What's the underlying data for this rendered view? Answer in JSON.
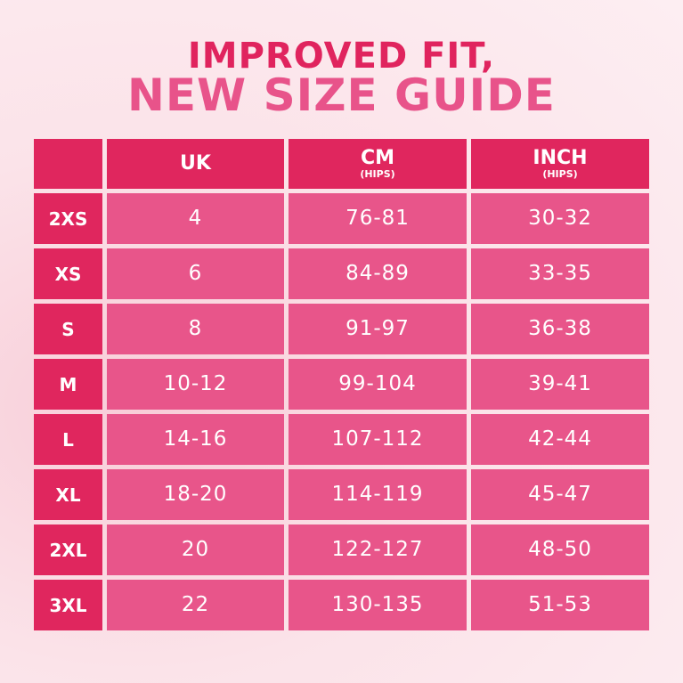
{
  "title": {
    "line1": "IMPROVED FIT,",
    "line2": "NEW SIZE GUIDE"
  },
  "colors": {
    "header": "#e0265e",
    "cell": "#e8558a",
    "title_line1": "#e0245e",
    "title_line2": "#e8538a"
  },
  "table": {
    "headers": [
      {
        "label": "UK",
        "sub": ""
      },
      {
        "label": "CM",
        "sub": "(HIPS)"
      },
      {
        "label": "INCH",
        "sub": "(HIPS)"
      }
    ],
    "rows": [
      {
        "size": "2XS",
        "uk": "4",
        "cm": "76-81",
        "inch": "30-32"
      },
      {
        "size": "XS",
        "uk": "6",
        "cm": "84-89",
        "inch": "33-35"
      },
      {
        "size": "S",
        "uk": "8",
        "cm": "91-97",
        "inch": "36-38"
      },
      {
        "size": "M",
        "uk": "10-12",
        "cm": "99-104",
        "inch": "39-41"
      },
      {
        "size": "L",
        "uk": "14-16",
        "cm": "107-112",
        "inch": "42-44"
      },
      {
        "size": "XL",
        "uk": "18-20",
        "cm": "114-119",
        "inch": "45-47"
      },
      {
        "size": "2XL",
        "uk": "20",
        "cm": "122-127",
        "inch": "48-50"
      },
      {
        "size": "3XL",
        "uk": "22",
        "cm": "130-135",
        "inch": "51-53"
      }
    ]
  }
}
